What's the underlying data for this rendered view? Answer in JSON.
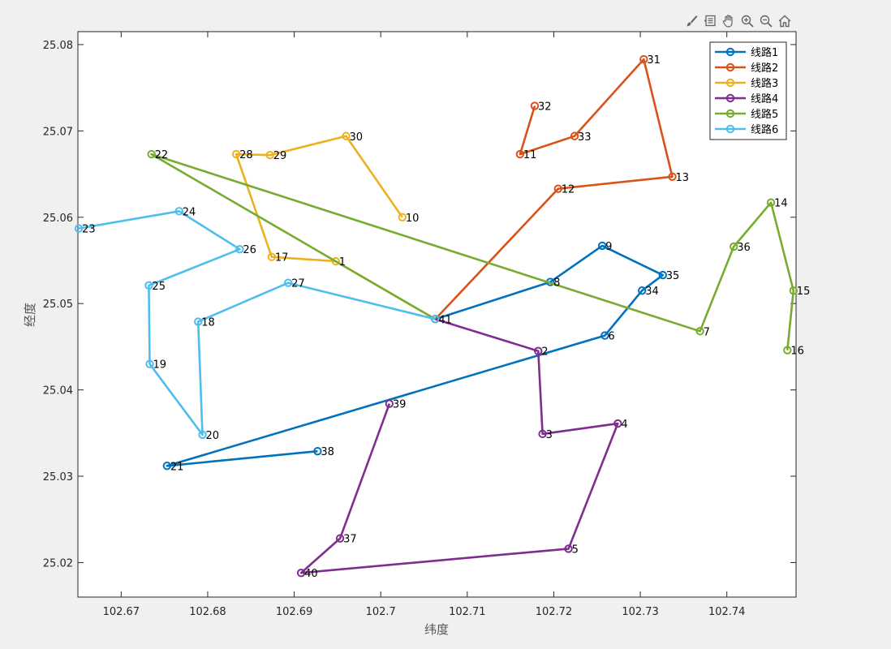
{
  "toolbar": {
    "icons": [
      "brush-icon",
      "data-tips-icon",
      "pan-hand-icon",
      "zoom-in-icon",
      "zoom-out-icon",
      "home-icon"
    ]
  },
  "chart_data": {
    "type": "line",
    "xlabel": "纬度",
    "ylabel": "经度",
    "xlim": [
      102.665,
      102.748
    ],
    "ylim": [
      25.016,
      25.0815
    ],
    "xticks": [
      102.67,
      102.68,
      102.69,
      102.7,
      102.71,
      102.72,
      102.73,
      102.74
    ],
    "xtick_labels": [
      "102.67",
      "102.68",
      "102.69",
      "102.7",
      "102.71",
      "102.72",
      "102.73",
      "102.74"
    ],
    "yticks": [
      25.02,
      25.03,
      25.04,
      25.05,
      25.06,
      25.07,
      25.08
    ],
    "ytick_labels": [
      "25.02",
      "25.03",
      "25.04",
      "25.05",
      "25.06",
      "25.07",
      "25.08"
    ],
    "grid": false,
    "legend_position": "top-right",
    "series": [
      {
        "name": "线路1",
        "color": "#0072BD",
        "points": [
          {
            "label": "41",
            "x": 102.7063,
            "y": 25.0482
          },
          {
            "label": "8",
            "x": 102.7196,
            "y": 25.0525
          },
          {
            "label": "9",
            "x": 102.7256,
            "y": 25.0567
          },
          {
            "label": "35",
            "x": 102.7326,
            "y": 25.0533
          },
          {
            "label": "34",
            "x": 102.7302,
            "y": 25.0515
          },
          {
            "label": "6",
            "x": 102.7259,
            "y": 25.0463
          },
          {
            "label": "21",
            "x": 102.6753,
            "y": 25.0312
          },
          {
            "label": "38",
            "x": 102.6927,
            "y": 25.0329
          }
        ]
      },
      {
        "name": "线路2",
        "color": "#D95319",
        "points": [
          {
            "label": "41",
            "x": 102.7063,
            "y": 25.0482
          },
          {
            "label": "12",
            "x": 102.7205,
            "y": 25.0633
          },
          {
            "label": "13",
            "x": 102.7337,
            "y": 25.0647
          },
          {
            "label": "31",
            "x": 102.7304,
            "y": 25.0783
          },
          {
            "label": "33",
            "x": 102.7224,
            "y": 25.0694
          },
          {
            "label": "11",
            "x": 102.7161,
            "y": 25.0673
          },
          {
            "label": "32",
            "x": 102.7178,
            "y": 25.0729
          }
        ]
      },
      {
        "name": "线路3",
        "color": "#EDB120",
        "points": [
          {
            "label": "41",
            "x": 102.7063,
            "y": 25.0482
          },
          {
            "label": "1",
            "x": 102.6948,
            "y": 25.0549
          },
          {
            "label": "17",
            "x": 102.6874,
            "y": 25.0554
          },
          {
            "label": "28",
            "x": 102.6833,
            "y": 25.0673
          },
          {
            "label": "29",
            "x": 102.6872,
            "y": 25.0672
          },
          {
            "label": "30",
            "x": 102.696,
            "y": 25.0694
          },
          {
            "label": "10",
            "x": 102.7025,
            "y": 25.06
          }
        ]
      },
      {
        "name": "线路4",
        "color": "#7E2F8E",
        "points": [
          {
            "label": "41",
            "x": 102.7063,
            "y": 25.0482
          },
          {
            "label": "2",
            "x": 102.7182,
            "y": 25.0445
          },
          {
            "label": "3",
            "x": 102.7187,
            "y": 25.0349
          },
          {
            "label": "4",
            "x": 102.7274,
            "y": 25.0361
          },
          {
            "label": "5",
            "x": 102.7217,
            "y": 25.0216
          },
          {
            "label": "40",
            "x": 102.6908,
            "y": 25.0188
          },
          {
            "label": "37",
            "x": 102.6953,
            "y": 25.0228
          },
          {
            "label": "39",
            "x": 102.701,
            "y": 25.0384
          }
        ]
      },
      {
        "name": "线路5",
        "color": "#77AC30",
        "points": [
          {
            "label": "41",
            "x": 102.7063,
            "y": 25.0482
          },
          {
            "label": "22",
            "x": 102.6735,
            "y": 25.0673
          },
          {
            "label": "7",
            "x": 102.7369,
            "y": 25.0468
          },
          {
            "label": "36",
            "x": 102.7408,
            "y": 25.0566
          },
          {
            "label": "14",
            "x": 102.7451,
            "y": 25.0617
          },
          {
            "label": "15",
            "x": 102.7477,
            "y": 25.0515
          },
          {
            "label": "16",
            "x": 102.747,
            "y": 25.0446
          }
        ]
      },
      {
        "name": "线路6",
        "color": "#4DBEEE",
        "points": [
          {
            "label": "41",
            "x": 102.7063,
            "y": 25.0482
          },
          {
            "label": "27",
            "x": 102.6893,
            "y": 25.0524
          },
          {
            "label": "18",
            "x": 102.6789,
            "y": 25.0479
          },
          {
            "label": "20",
            "x": 102.6794,
            "y": 25.0348
          },
          {
            "label": "19",
            "x": 102.6733,
            "y": 25.043
          },
          {
            "label": "25",
            "x": 102.6732,
            "y": 25.0521
          },
          {
            "label": "26",
            "x": 102.6837,
            "y": 25.0563
          },
          {
            "label": "24",
            "x": 102.6767,
            "y": 25.0607
          },
          {
            "label": "23",
            "x": 102.6651,
            "y": 25.0587
          }
        ]
      }
    ]
  }
}
